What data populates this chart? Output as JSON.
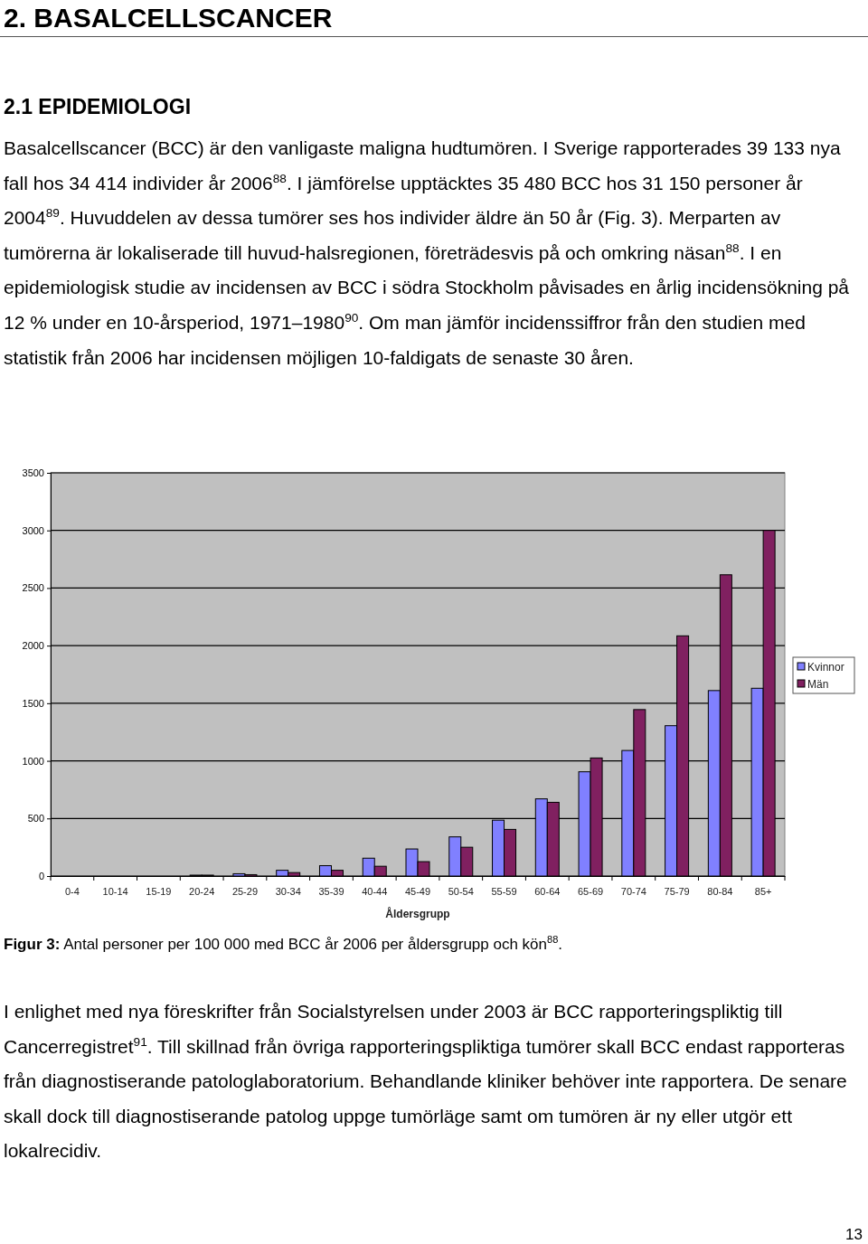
{
  "chart_data": {
    "type": "bar",
    "title": "2. BASALCELLSCANCER",
    "subtitle": "2.1 EPIDEMIOLOGI",
    "xlabel": "Åldersgrupp",
    "categories": [
      "0-4",
      "10-14",
      "15-19",
      "20-24",
      "25-29",
      "30-34",
      "35-39",
      "40-44",
      "45-49",
      "50-54",
      "55-59",
      "60-64",
      "65-69",
      "70-74",
      "75-79",
      "80-84",
      "85+"
    ],
    "series": [
      {
        "name": "Kvinnor",
        "color": "#8080ff",
        "values": [
          0,
          0,
          0,
          8,
          20,
          50,
          90,
          155,
          235,
          340,
          485,
          670,
          905,
          1090,
          1305,
          1610,
          1630
        ]
      },
      {
        "name": "Män",
        "color": "#802060",
        "values": [
          0,
          0,
          0,
          8,
          12,
          30,
          50,
          85,
          125,
          250,
          405,
          640,
          1025,
          1445,
          2085,
          2615,
          3000
        ]
      }
    ],
    "ylim": [
      0,
      3500
    ],
    "yticks": [
      0,
      500,
      1000,
      1500,
      2000,
      2500,
      3000,
      3500
    ],
    "grid": "y",
    "legend": "right",
    "annotations": [
      "Basalcellscancer (BCC) är den vanligaste maligna hudtumören. I Sverige rapporterades 39 133 nya fall hos 34 414 individer år 2006$^{88}$. I jämförelse upptäcktes 35 480 BCC hos 31 150 personer år 2004$^{89}$. Huvuddelen av dessa tumörer ses hos individer äldre än 50 år (Fig. 3). Merparten av tumörerna är lokaliserade till huvud-halsregionen, företrädesvis på och omkring näsan$^{88}$. I en epidemiologisk studie av incidensen av BCC i södra Stockholm påvisades en årlig incidensökning på 12 % under en 10-årsperiod, 1971–1980$^{90}$. Om man jämför incidenssiffror från den studien med statistik från 2006 har incidensen möjligen 10-faldigats de senaste 30 åren.",
      "Figur 3: Antal personer per 100 000 med BCC år 2006 per åldersgrupp och kön$^{88}$.",
      "I enlighet med nya föreskrifter från Socialstyrelsen under 2003 är BCC rapporteringspliktig till Cancerregistret$^{91}$. Till skillnad från övriga rapporteringspliktiga tumörer skall BCC endast rapporteras från diagnostiserande patologlaboratorium. Behandlande kliniker behöver inte rapportera. De senare skall dock till diagnostiserande patolog uppge tumörläge samt om tumören är ny eller utgör ett lokalrecidiv.",
      "13"
    ]
  }
}
